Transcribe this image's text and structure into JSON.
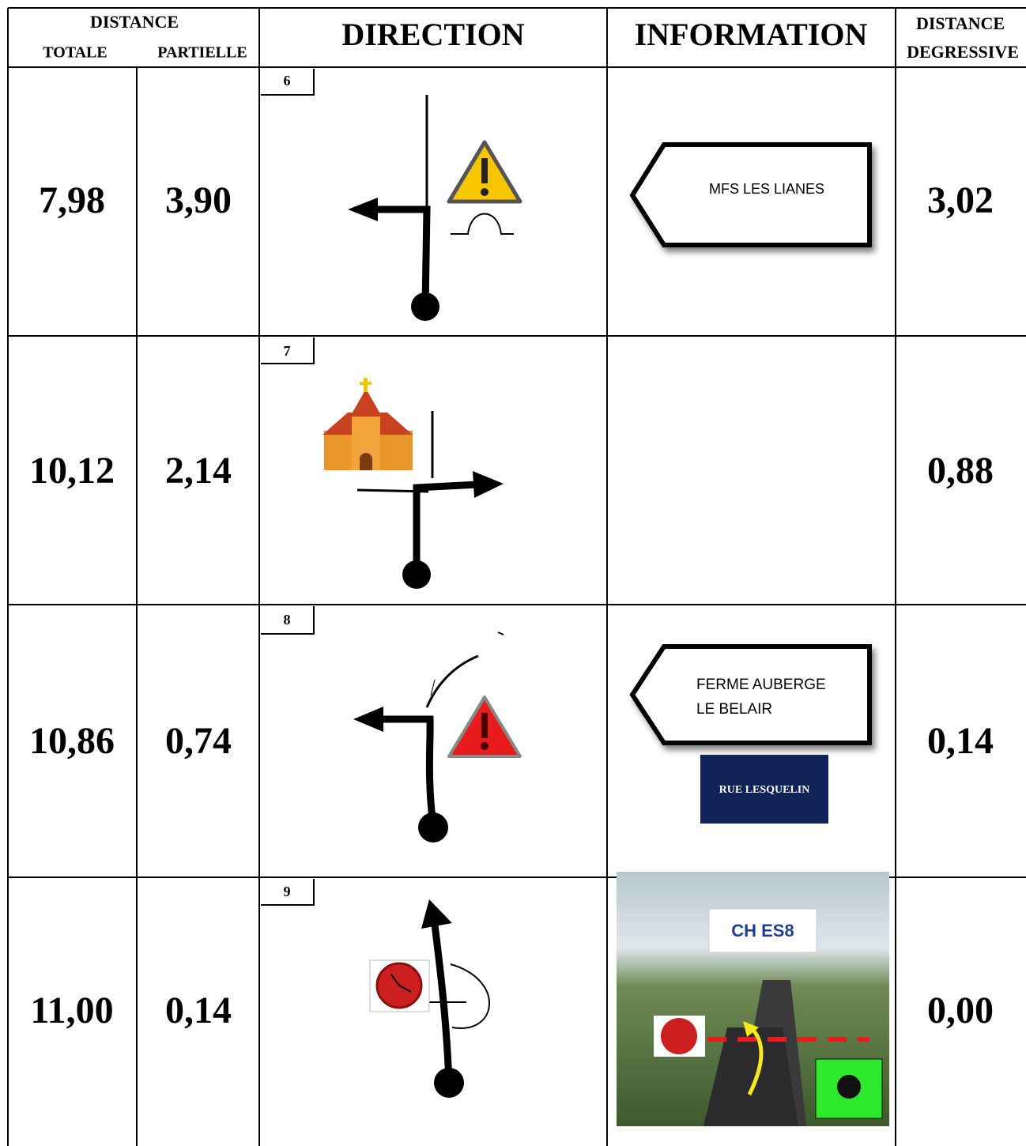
{
  "header": {
    "distance": "DISTANCE",
    "totale": "TOTALE",
    "partielle": "PARTIELLE",
    "direction": "DIRECTION",
    "information": "INFORMATION",
    "distance_degressive": "DISTANCE",
    "degressive": "DEGRESSIVE"
  },
  "rows": [
    {
      "totale": "7,98",
      "partielle": "3,90",
      "step": "6",
      "info": [
        "MFS LES LIANES"
      ],
      "degressive": "3,02"
    },
    {
      "totale": "10,12",
      "partielle": "2,14",
      "step": "7",
      "info": [],
      "degressive": "0,88"
    },
    {
      "totale": "10,86",
      "partielle": "0,74",
      "step": "8",
      "info": [
        "FERME AUBERGE",
        "LE BELAIR",
        "RUE LESQUELIN"
      ],
      "degressive": "0,14"
    },
    {
      "totale": "11,00",
      "partielle": "0,14",
      "step": "9",
      "info": [
        "CH ES8"
      ],
      "degressive": "0,00"
    }
  ]
}
